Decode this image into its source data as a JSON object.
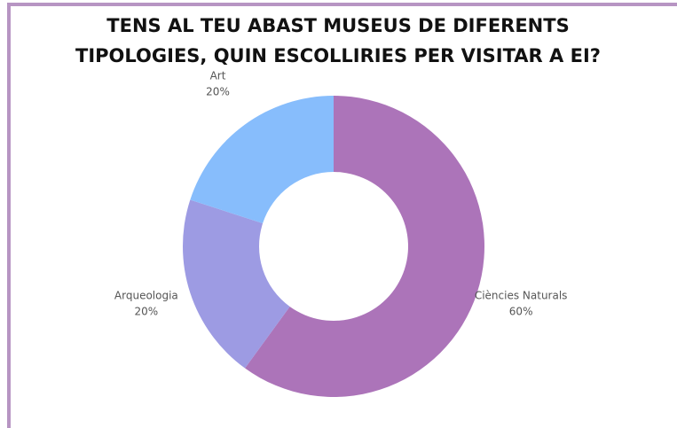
{
  "chart_data": {
    "type": "donut",
    "title": [
      "TENS AL TEU ABAST MUSEUS DE DIFERENTS",
      "TIPOLOGIES, QUIN ESCOLLIRIES PER VISITAR A EI?"
    ],
    "categories": [
      "Ciències Naturals",
      "Arqueologia",
      "Art"
    ],
    "values": [
      60,
      20,
      20
    ],
    "value_labels": [
      "60%",
      "20%",
      "20%"
    ],
    "colors": [
      "#ac74b9",
      "#9d9be3",
      "#87bdfc"
    ]
  }
}
